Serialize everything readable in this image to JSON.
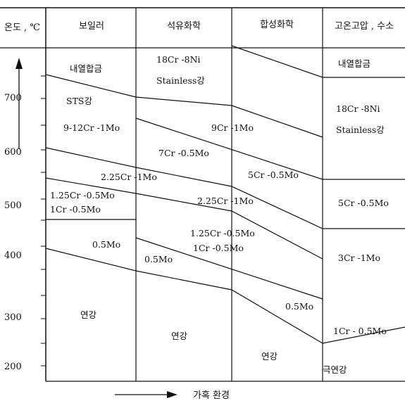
{
  "axis": {
    "y_title": "온도 , ℃",
    "y_ticks": [
      "700",
      "600",
      "500",
      "400",
      "300",
      "200"
    ],
    "x_caption": "가혹  환경"
  },
  "columns": {
    "boiler": "보일러",
    "petrochem": "석유화학",
    "synthetic": "합성화학",
    "high_temp": "고온고압 , 수소"
  },
  "labels": {
    "boiler_alloy": "내열합금",
    "boiler_sts": "STS강",
    "boiler_9cr": "9-12Cr -1Mo",
    "shared_225": "2.25Cr -1Mo",
    "boiler_125": "1.25Cr -0.5Mo",
    "boiler_1cr": "1Cr -0.5Mo",
    "boiler_05": "0.5Mo",
    "boiler_mild": "연강",
    "petro_18cr": "18Cr -8Ni",
    "petro_stainless": "Stainless강",
    "petro_9cr": "9Cr -1Mo",
    "petro_7cr": "7Cr -0.5Mo",
    "petro_225": "2.25Cr -1Mo",
    "petro_125": "1.25Cr -0.5Mo",
    "petro_1cr": "1Cr -0.5Mo",
    "petro_05": "0.5Mo",
    "petro_mild": "연강",
    "synth_5cr": "5Cr -0.5Mo",
    "synth_05": "0.5Mo",
    "synth_mild": "연강",
    "ht_alloy": "내열합금",
    "ht_18cr": "18Cr -8Ni",
    "ht_stainless": "Stainless강",
    "ht_5cr": "5Cr -0.5Mo",
    "ht_3cr": "3Cr -1Mo",
    "ht_1cr": "1Cr - 0.5Mo",
    "ht_mild": "극연강"
  }
}
